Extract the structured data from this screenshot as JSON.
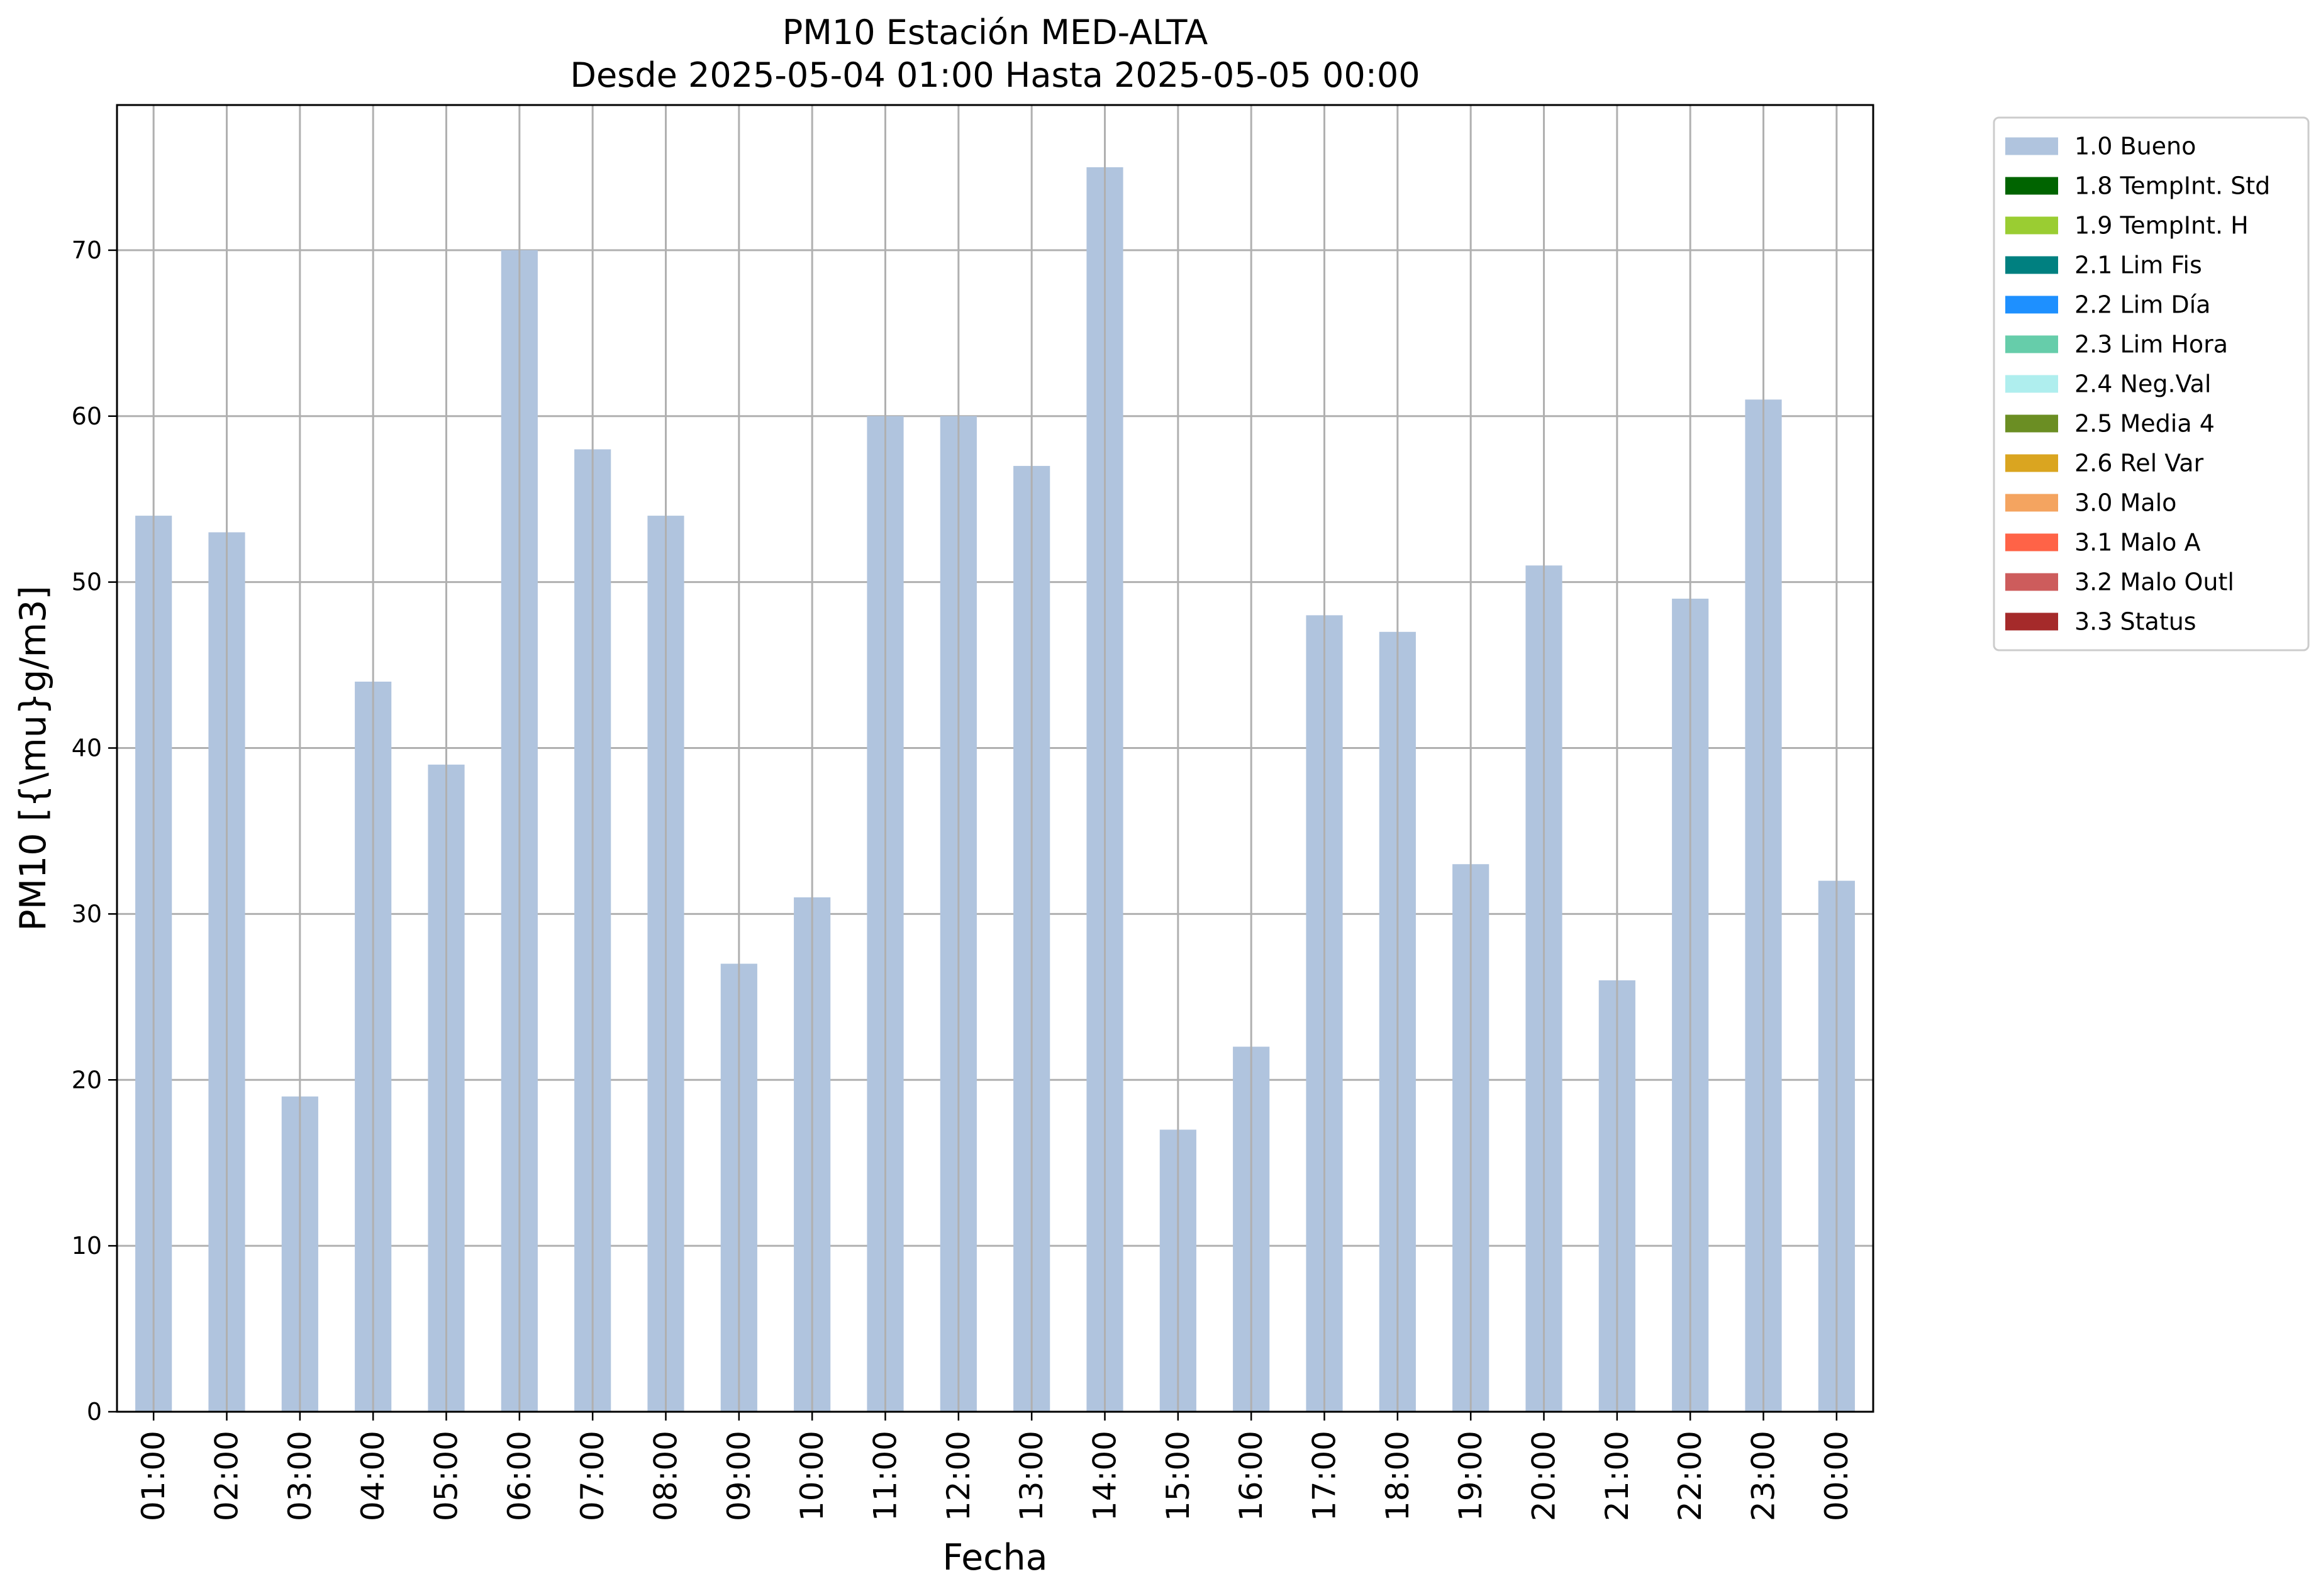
{
  "chart_data": {
    "type": "bar",
    "title": "PM10 Estación MED-ALTA",
    "subtitle": "Desde 2025-05-04 01:00 Hasta 2025-05-05 00:00",
    "xlabel": "Fecha",
    "ylabel": "PM10 [{\\mu}g/m3]",
    "categories": [
      "01:00",
      "02:00",
      "03:00",
      "04:00",
      "05:00",
      "06:00",
      "07:00",
      "08:00",
      "09:00",
      "10:00",
      "11:00",
      "12:00",
      "13:00",
      "14:00",
      "15:00",
      "16:00",
      "17:00",
      "18:00",
      "19:00",
      "20:00",
      "21:00",
      "22:00",
      "23:00",
      "00:00"
    ],
    "series": [
      {
        "name": "1.0 Bueno",
        "color": "#b0c4de",
        "values": [
          54,
          53,
          19,
          44,
          39,
          70,
          58,
          54,
          27,
          31,
          60,
          60,
          57,
          75,
          17,
          22,
          48,
          47,
          33,
          51,
          26,
          49,
          61,
          32
        ]
      }
    ],
    "ylim": [
      0,
      78.75
    ],
    "yticks": [
      0,
      10,
      20,
      30,
      40,
      50,
      60,
      70
    ],
    "grid": true,
    "legend_position": "outside-right-top",
    "legend": [
      {
        "label": "1.0 Bueno",
        "color": "#b0c4de"
      },
      {
        "label": "1.8 TempInt. Std",
        "color": "#006400"
      },
      {
        "label": "1.9 TempInt. H",
        "color": "#9acd32"
      },
      {
        "label": "2.1 Lim Fis",
        "color": "#008080"
      },
      {
        "label": "2.2 Lim Día",
        "color": "#1e90ff"
      },
      {
        "label": "2.3 Lim Hora",
        "color": "#66cdaa"
      },
      {
        "label": "2.4 Neg.Val",
        "color": "#afeeee"
      },
      {
        "label": "2.5 Media 4",
        "color": "#6b8e23"
      },
      {
        "label": "2.6 Rel Var",
        "color": "#daa520"
      },
      {
        "label": "3.0 Malo",
        "color": "#f4a460"
      },
      {
        "label": "3.1 Malo A",
        "color": "#ff6347"
      },
      {
        "label": "3.2 Malo Outl",
        "color": "#cd5c5c"
      },
      {
        "label": "3.3 Status",
        "color": "#a52a2a"
      }
    ]
  }
}
